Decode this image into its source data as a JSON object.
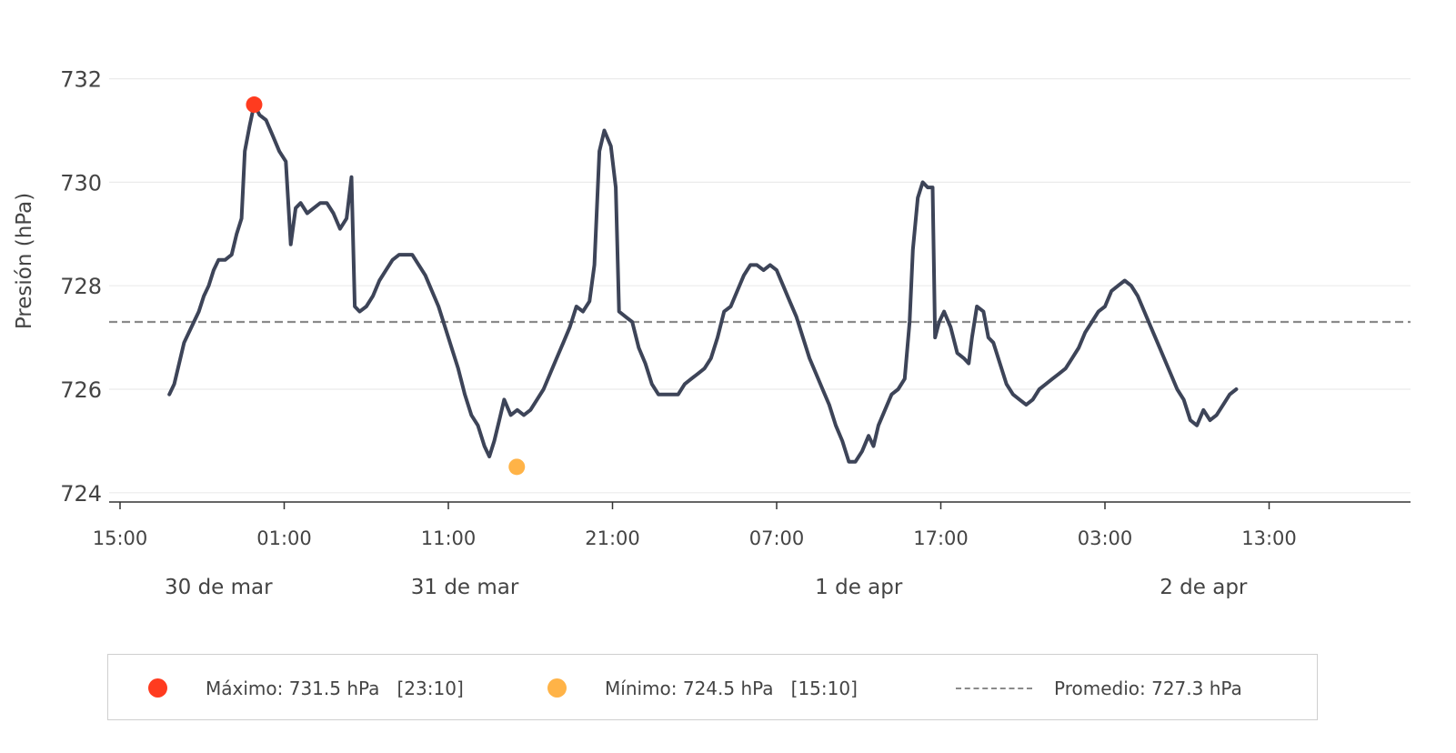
{
  "chart_data": {
    "type": "line",
    "ylabel": "Presión (hPa)",
    "ylim": [
      723.8,
      733.5
    ],
    "yticks": [
      724,
      726,
      728,
      730,
      732
    ],
    "x_unit": "hours since 30 de mar 15:00",
    "xlim": [
      0,
      79
    ],
    "xticks": [
      {
        "t": 0,
        "label": "15:00"
      },
      {
        "t": 10,
        "label": "01:00"
      },
      {
        "t": 20,
        "label": "11:00"
      },
      {
        "t": 30,
        "label": "21:00"
      },
      {
        "t": 40,
        "label": "07:00"
      },
      {
        "t": 50,
        "label": "17:00"
      },
      {
        "t": 60,
        "label": "03:00"
      },
      {
        "t": 70,
        "label": "13:00"
      }
    ],
    "date_labels": [
      {
        "t": 6,
        "label": "30 de mar"
      },
      {
        "t": 21,
        "label": "31 de mar"
      },
      {
        "t": 45,
        "label": "1 de apr"
      },
      {
        "t": 66,
        "label": "2 de apr"
      }
    ],
    "grid": true,
    "series": [
      {
        "name": "Presión",
        "color": "#3d4458",
        "points": [
          [
            3.0,
            725.9
          ],
          [
            3.3,
            726.1
          ],
          [
            3.6,
            726.5
          ],
          [
            3.9,
            726.9
          ],
          [
            4.2,
            727.1
          ],
          [
            4.5,
            727.3
          ],
          [
            4.8,
            727.5
          ],
          [
            5.1,
            727.8
          ],
          [
            5.4,
            728.0
          ],
          [
            5.7,
            728.3
          ],
          [
            6.0,
            728.5
          ],
          [
            6.4,
            728.5
          ],
          [
            6.8,
            728.6
          ],
          [
            7.1,
            729.0
          ],
          [
            7.4,
            729.3
          ],
          [
            7.6,
            730.6
          ],
          [
            7.9,
            731.1
          ],
          [
            8.17,
            731.5
          ],
          [
            8.5,
            731.3
          ],
          [
            8.9,
            731.2
          ],
          [
            9.3,
            730.9
          ],
          [
            9.7,
            730.6
          ],
          [
            10.1,
            730.4
          ],
          [
            10.4,
            728.8
          ],
          [
            10.7,
            729.5
          ],
          [
            11.0,
            729.6
          ],
          [
            11.4,
            729.4
          ],
          [
            11.8,
            729.5
          ],
          [
            12.2,
            729.6
          ],
          [
            12.6,
            729.6
          ],
          [
            13.0,
            729.4
          ],
          [
            13.4,
            729.1
          ],
          [
            13.8,
            729.3
          ],
          [
            14.1,
            730.1
          ],
          [
            14.3,
            727.6
          ],
          [
            14.6,
            727.5
          ],
          [
            15.0,
            727.6
          ],
          [
            15.4,
            727.8
          ],
          [
            15.8,
            728.1
          ],
          [
            16.2,
            728.3
          ],
          [
            16.6,
            728.5
          ],
          [
            17.0,
            728.6
          ],
          [
            17.4,
            728.6
          ],
          [
            17.8,
            728.6
          ],
          [
            18.2,
            728.4
          ],
          [
            18.6,
            728.2
          ],
          [
            19.0,
            727.9
          ],
          [
            19.4,
            727.6
          ],
          [
            19.8,
            727.2
          ],
          [
            20.2,
            726.8
          ],
          [
            20.6,
            726.4
          ],
          [
            21.0,
            725.9
          ],
          [
            21.4,
            725.5
          ],
          [
            21.8,
            725.3
          ],
          [
            22.2,
            724.9
          ],
          [
            22.5,
            724.7
          ],
          [
            22.8,
            725.0
          ],
          [
            23.1,
            725.4
          ],
          [
            23.4,
            725.8
          ],
          [
            23.8,
            725.5
          ],
          [
            24.2,
            725.6
          ],
          [
            24.6,
            725.5
          ],
          [
            25.0,
            725.6
          ],
          [
            25.4,
            725.8
          ],
          [
            25.8,
            726.0
          ],
          [
            26.2,
            726.3
          ],
          [
            26.6,
            726.6
          ],
          [
            27.0,
            726.9
          ],
          [
            27.4,
            727.2
          ],
          [
            27.8,
            727.6
          ],
          [
            28.2,
            727.5
          ],
          [
            28.6,
            727.7
          ],
          [
            28.9,
            728.4
          ],
          [
            29.2,
            730.6
          ],
          [
            29.5,
            731.0
          ],
          [
            29.9,
            730.7
          ],
          [
            30.2,
            729.9
          ],
          [
            30.4,
            727.5
          ],
          [
            30.8,
            727.4
          ],
          [
            31.2,
            727.3
          ],
          [
            31.6,
            726.8
          ],
          [
            32.0,
            726.5
          ],
          [
            32.4,
            726.1
          ],
          [
            32.8,
            725.9
          ],
          [
            33.2,
            725.9
          ],
          [
            33.6,
            725.9
          ],
          [
            34.0,
            725.9
          ],
          [
            34.4,
            726.1
          ],
          [
            34.8,
            726.2
          ],
          [
            35.2,
            726.3
          ],
          [
            35.6,
            726.4
          ],
          [
            36.0,
            726.6
          ],
          [
            36.4,
            727.0
          ],
          [
            36.8,
            727.5
          ],
          [
            37.2,
            727.6
          ],
          [
            37.6,
            727.9
          ],
          [
            38.0,
            728.2
          ],
          [
            38.4,
            728.4
          ],
          [
            38.8,
            728.4
          ],
          [
            39.2,
            728.3
          ],
          [
            39.6,
            728.4
          ],
          [
            40.0,
            728.3
          ],
          [
            40.4,
            728.0
          ],
          [
            40.8,
            727.7
          ],
          [
            41.2,
            727.4
          ],
          [
            41.6,
            727.0
          ],
          [
            42.0,
            726.6
          ],
          [
            42.4,
            726.3
          ],
          [
            42.8,
            726.0
          ],
          [
            43.2,
            725.7
          ],
          [
            43.6,
            725.3
          ],
          [
            44.0,
            725.0
          ],
          [
            44.4,
            724.6
          ],
          [
            44.8,
            724.6
          ],
          [
            45.2,
            724.8
          ],
          [
            45.6,
            725.1
          ],
          [
            45.9,
            724.9
          ],
          [
            46.2,
            725.3
          ],
          [
            46.6,
            725.6
          ],
          [
            47.0,
            725.9
          ],
          [
            47.4,
            726.0
          ],
          [
            47.8,
            726.2
          ],
          [
            48.1,
            727.3
          ],
          [
            48.3,
            728.7
          ],
          [
            48.6,
            729.7
          ],
          [
            48.9,
            730.0
          ],
          [
            49.2,
            729.9
          ],
          [
            49.5,
            729.9
          ],
          [
            49.65,
            727.0
          ],
          [
            49.9,
            727.3
          ],
          [
            50.2,
            727.5
          ],
          [
            50.6,
            727.2
          ],
          [
            51.0,
            726.7
          ],
          [
            51.4,
            726.6
          ],
          [
            51.7,
            726.5
          ],
          [
            51.9,
            727.0
          ],
          [
            52.2,
            727.6
          ],
          [
            52.6,
            727.5
          ],
          [
            52.9,
            727.0
          ],
          [
            53.2,
            726.9
          ],
          [
            53.6,
            726.5
          ],
          [
            54.0,
            726.1
          ],
          [
            54.4,
            725.9
          ],
          [
            54.8,
            725.8
          ],
          [
            55.2,
            725.7
          ],
          [
            55.6,
            725.8
          ],
          [
            56.0,
            726.0
          ],
          [
            56.4,
            726.1
          ],
          [
            56.8,
            726.2
          ],
          [
            57.2,
            726.3
          ],
          [
            57.6,
            726.4
          ],
          [
            58.0,
            726.6
          ],
          [
            58.4,
            726.8
          ],
          [
            58.8,
            727.1
          ],
          [
            59.2,
            727.3
          ],
          [
            59.6,
            727.5
          ],
          [
            60.0,
            727.6
          ],
          [
            60.4,
            727.9
          ],
          [
            60.8,
            728.0
          ],
          [
            61.2,
            728.1
          ],
          [
            61.6,
            728.0
          ],
          [
            62.0,
            727.8
          ],
          [
            62.4,
            727.5
          ],
          [
            62.8,
            727.2
          ],
          [
            63.2,
            726.9
          ],
          [
            63.6,
            726.6
          ],
          [
            64.0,
            726.3
          ],
          [
            64.4,
            726.0
          ],
          [
            64.8,
            725.8
          ],
          [
            65.2,
            725.4
          ],
          [
            65.6,
            725.3
          ],
          [
            66.0,
            725.6
          ],
          [
            66.4,
            725.4
          ],
          [
            66.8,
            725.5
          ],
          [
            67.2,
            725.7
          ],
          [
            67.6,
            725.9
          ],
          [
            68.0,
            726.0
          ]
        ]
      }
    ],
    "average": {
      "value": 727.3,
      "color": "#8a8a8a"
    },
    "max_marker": {
      "t": 8.17,
      "value": 731.5,
      "color": "#ff3b1f"
    },
    "min_marker": {
      "t": 24.17,
      "value": 724.5,
      "color": "#ffb347"
    },
    "legend": {
      "position": "bottom",
      "max_text": "Máximo: 731.5 hPa   [23:10]",
      "min_text": "Mínimo: 724.5 hPa   [15:10]",
      "avg_text": "Promedio: 727.3 hPa"
    }
  }
}
